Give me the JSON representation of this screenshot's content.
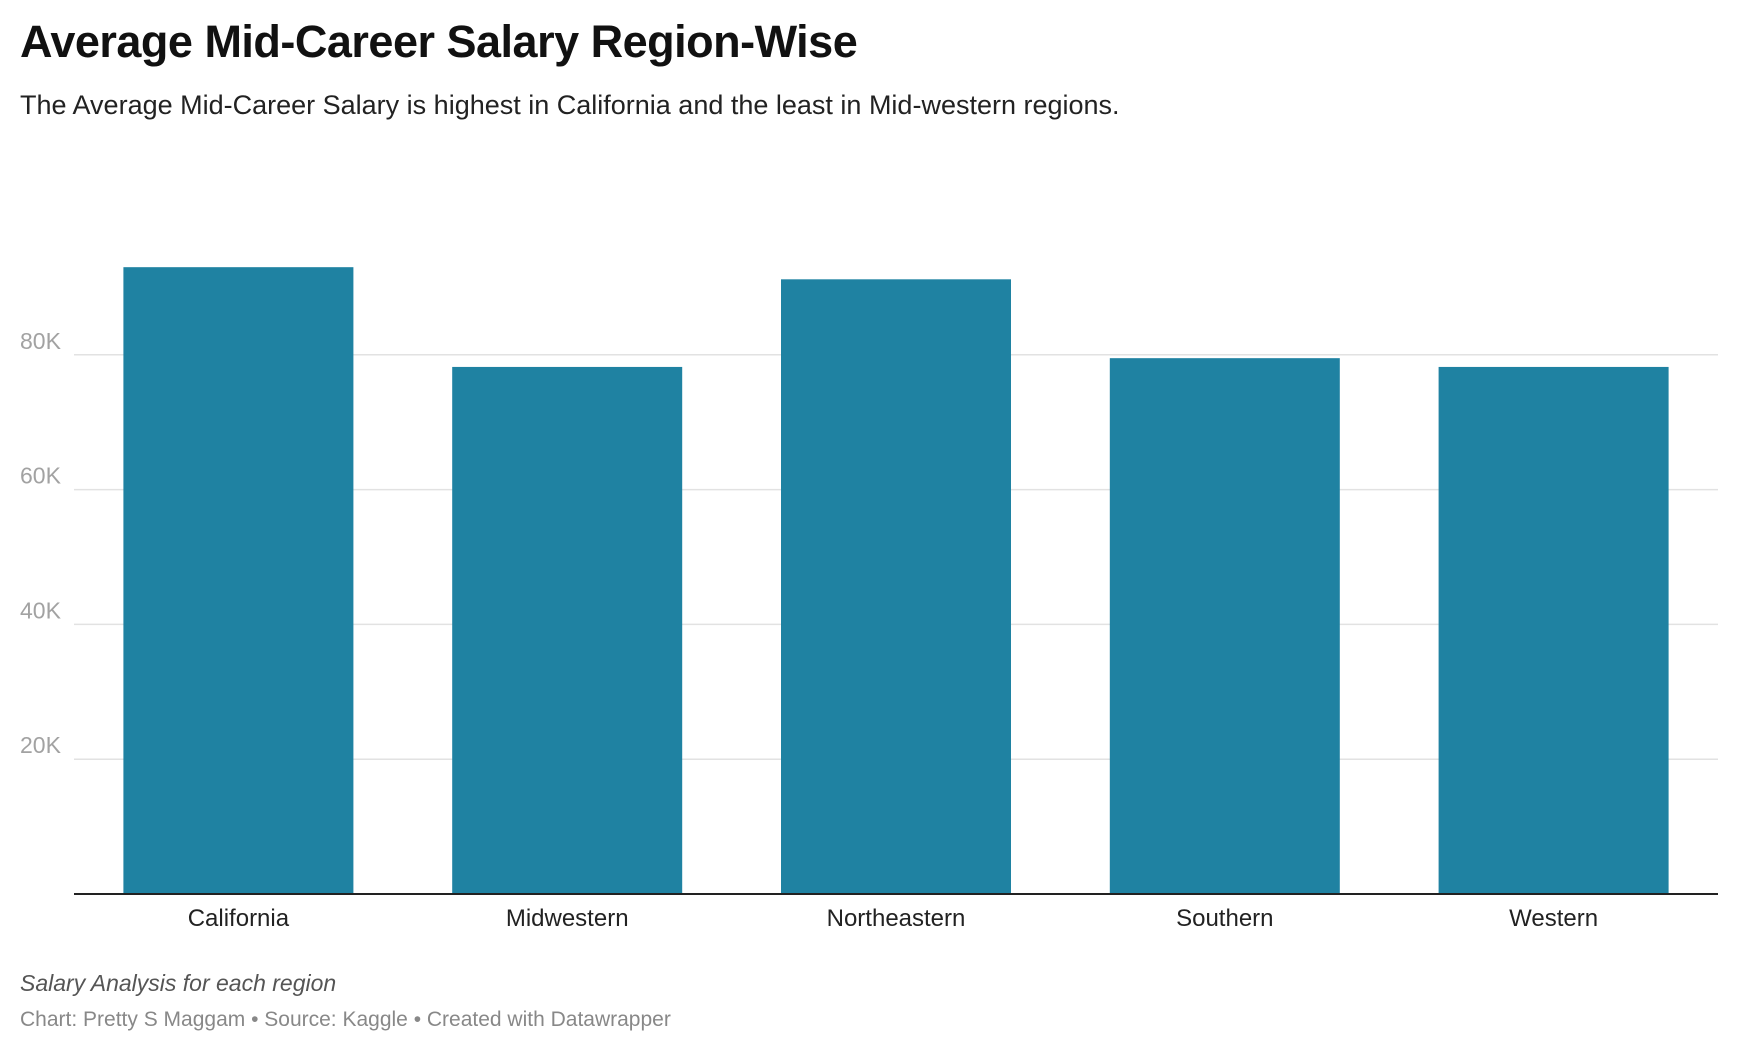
{
  "header": {
    "title": "Average Mid-Career Salary Region-Wise",
    "subtitle": "The Average Mid-Career Salary is highest in California and the least in Mid-western regions."
  },
  "footer": {
    "notes": "Salary Analysis for each region",
    "byline": "Chart: Pretty S Maggam • Source: Kaggle • Created with Datawrapper"
  },
  "colors": {
    "bar": "#1f82a2",
    "gridline": "#e2e2e2",
    "tick_text": "#a2a2a2"
  },
  "chart_data": {
    "type": "bar",
    "categories": [
      "California",
      "Midwestern",
      "Northeastern",
      "Southern",
      "Western"
    ],
    "values": [
      93000,
      78200,
      91200,
      79500,
      78200
    ],
    "ylim": [
      0,
      100000
    ],
    "yticks": [
      20000,
      40000,
      60000,
      80000
    ],
    "ytick_labels": [
      "20K",
      "40K",
      "60K",
      "80K"
    ],
    "grid": true,
    "legend": "none"
  }
}
